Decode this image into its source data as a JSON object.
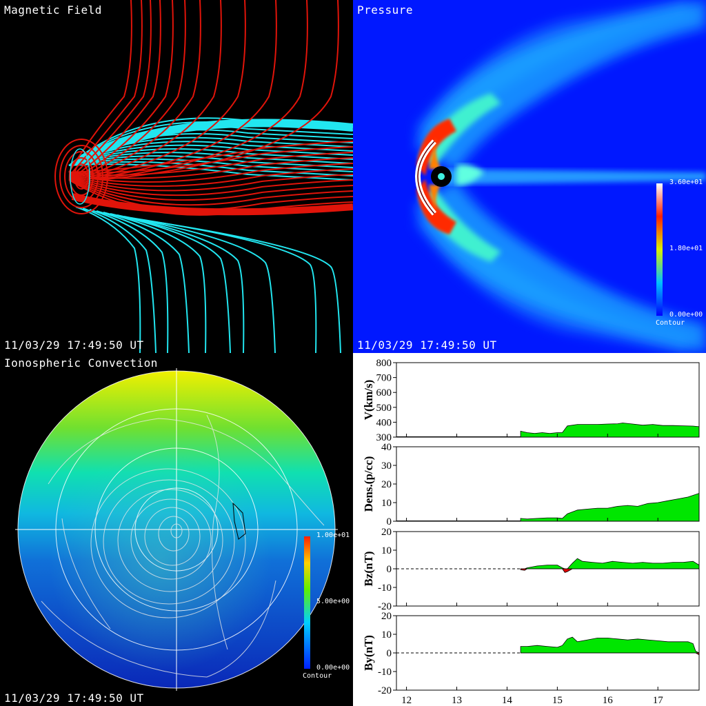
{
  "panels": {
    "magnetic": {
      "title": "Magnetic Field",
      "timestamp": "11/03/29 17:49:50 UT"
    },
    "pressure": {
      "title": "Pressure",
      "timestamp": "11/03/29 17:49:50 UT",
      "colorbar": {
        "max": "3.60e+01",
        "mid": "1.80e+01",
        "min": "0.00e+00",
        "label": "Contour"
      }
    },
    "ionosphere": {
      "title": "Ionospheric Convection",
      "timestamp": "11/03/29 17:49:50 UT",
      "colorbar": {
        "max": "1.00e+01",
        "mid": "5.00e+00",
        "min": "0.00e+00",
        "label": "Contour"
      }
    }
  },
  "colors": {
    "field_closed": "#e0140a",
    "field_open": "#22e6f0",
    "pressure_bg": "#0018ff",
    "positive_fill": "#00e600",
    "negative_fill": "#e00000"
  },
  "chart_data": [
    {
      "type": "area",
      "ylabel": "V(km/s)",
      "ylim": [
        300,
        800
      ],
      "yticks": [
        300,
        400,
        500,
        600,
        700,
        800
      ],
      "x": [
        14.27,
        14.4,
        14.55,
        14.7,
        14.85,
        15.0,
        15.1,
        15.2,
        15.4,
        15.6,
        15.8,
        16.0,
        16.2,
        16.3,
        16.5,
        16.7,
        16.9,
        17.1,
        17.3,
        17.5,
        17.7,
        17.82
      ],
      "y": [
        340,
        330,
        325,
        330,
        325,
        330,
        330,
        375,
        385,
        385,
        385,
        388,
        390,
        395,
        388,
        380,
        385,
        378,
        378,
        376,
        374,
        370
      ]
    },
    {
      "type": "area",
      "ylabel": "Dens.(p/cc)",
      "ylim": [
        0,
        40
      ],
      "yticks": [
        0,
        10,
        20,
        30,
        40
      ],
      "x": [
        14.27,
        14.4,
        14.6,
        14.8,
        15.0,
        15.1,
        15.2,
        15.4,
        15.6,
        15.8,
        16.0,
        16.2,
        16.4,
        16.6,
        16.8,
        17.0,
        17.2,
        17.4,
        17.6,
        17.82
      ],
      "y": [
        1.5,
        1.2,
        1.5,
        1.8,
        1.8,
        1.5,
        4,
        6,
        6.5,
        7,
        7,
        8,
        8.5,
        8,
        9.5,
        10,
        11,
        12,
        13,
        15
      ]
    },
    {
      "type": "area",
      "ylabel": "Bz(nT)",
      "ylim": [
        -20,
        20
      ],
      "yticks": [
        -20,
        -10,
        0,
        10,
        20
      ],
      "baseline": 0,
      "x": [
        14.27,
        14.35,
        14.4,
        14.6,
        14.8,
        15.0,
        15.1,
        15.15,
        15.2,
        15.3,
        15.4,
        15.5,
        15.7,
        15.9,
        16.1,
        16.3,
        16.5,
        16.7,
        16.9,
        17.1,
        17.3,
        17.5,
        17.7,
        17.82
      ],
      "y": [
        -0.5,
        -0.8,
        0.5,
        1.5,
        2,
        2,
        0.5,
        -2,
        -1.5,
        3,
        5.5,
        4,
        3.5,
        3,
        4,
        3.5,
        3,
        3.5,
        3,
        3,
        3.5,
        3.5,
        4,
        2
      ]
    },
    {
      "type": "area",
      "ylabel": "By(nT)",
      "ylim": [
        -20,
        20
      ],
      "yticks": [
        -20,
        -10,
        0,
        10,
        20
      ],
      "baseline": 0,
      "x": [
        14.27,
        14.4,
        14.6,
        14.8,
        15.0,
        15.1,
        15.2,
        15.3,
        15.4,
        15.6,
        15.8,
        16.0,
        16.2,
        16.4,
        16.6,
        16.8,
        17.0,
        17.2,
        17.4,
        17.6,
        17.7,
        17.75,
        17.82
      ],
      "y": [
        3.5,
        3.5,
        4,
        3.5,
        3,
        4,
        7.5,
        8.5,
        6,
        7,
        8,
        8,
        7.5,
        7,
        7.5,
        7,
        6.5,
        6,
        6,
        6,
        5,
        1,
        -1
      ]
    }
  ],
  "xaxis": {
    "xlim": [
      11.8,
      17.82
    ],
    "xticks": [
      12,
      13,
      14,
      15,
      16,
      17
    ]
  }
}
